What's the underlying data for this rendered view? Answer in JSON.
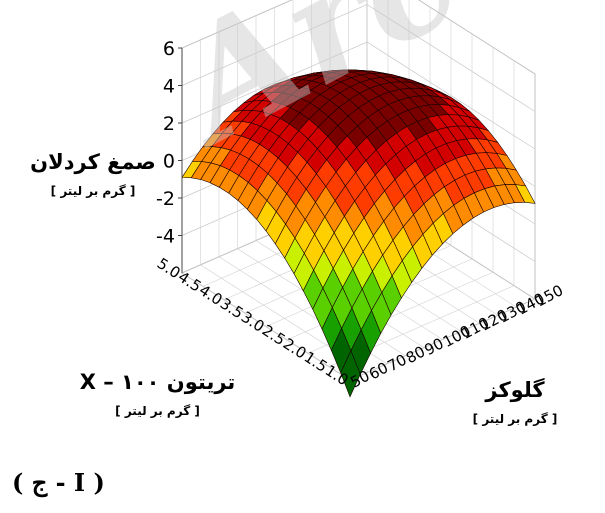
{
  "watermark": "Arc",
  "panel_label": "( ج - I )",
  "chart_data": {
    "type": "surface",
    "z_axis": {
      "label": "صمغ کردلان",
      "unit": "[ گرم بر لیتر ]",
      "ticks": [
        6,
        4,
        2,
        0,
        -2,
        -4
      ],
      "tick_labels": [
        "6",
        "4",
        "2",
        "0",
        "-2",
        "-4"
      ],
      "range": [
        -6,
        6
      ]
    },
    "y_axis": {
      "label": "تریتون X – ۱۰۰",
      "unit": "[ گرم بر لیتر ]",
      "ticks": [
        1.0,
        1.5,
        2.0,
        2.5,
        3.0,
        3.5,
        4.0,
        4.5,
        5.0
      ],
      "tick_labels": [
        "1.0",
        "1.5",
        "2.0",
        "2.5",
        "3.0",
        "3.5",
        "4.0",
        "4.5",
        "5.0"
      ],
      "range": [
        1.0,
        5.0
      ]
    },
    "x_axis": {
      "label": "گلوکز",
      "unit": "[ گرم بر لیتر ]",
      "ticks": [
        50,
        60,
        70,
        80,
        90,
        100,
        110,
        120,
        130,
        140,
        150
      ],
      "tick_labels": [
        "50",
        "60",
        "70",
        "80",
        "90",
        "100",
        "110",
        "120",
        "130",
        "140",
        "150"
      ],
      "range": [
        50,
        150
      ]
    },
    "surface_samples": [
      {
        "glucose": 50,
        "triton": 1.0,
        "gum": -5.5
      },
      {
        "glucose": 100,
        "triton": 3.0,
        "gum": 3.5
      },
      {
        "glucose": 150,
        "triton": 5.0,
        "gum": 0.3
      },
      {
        "glucose": 50,
        "triton": 5.0,
        "gum": 0.0
      },
      {
        "glucose": 150,
        "triton": 1.0,
        "gum": 0.0
      }
    ],
    "colormap": [
      "#006400",
      "#18a000",
      "#5ad000",
      "#c8f000",
      "#ffd000",
      "#ff8c00",
      "#ff3c00",
      "#d20000",
      "#7a0000"
    ],
    "grid": true,
    "legend": "none"
  }
}
